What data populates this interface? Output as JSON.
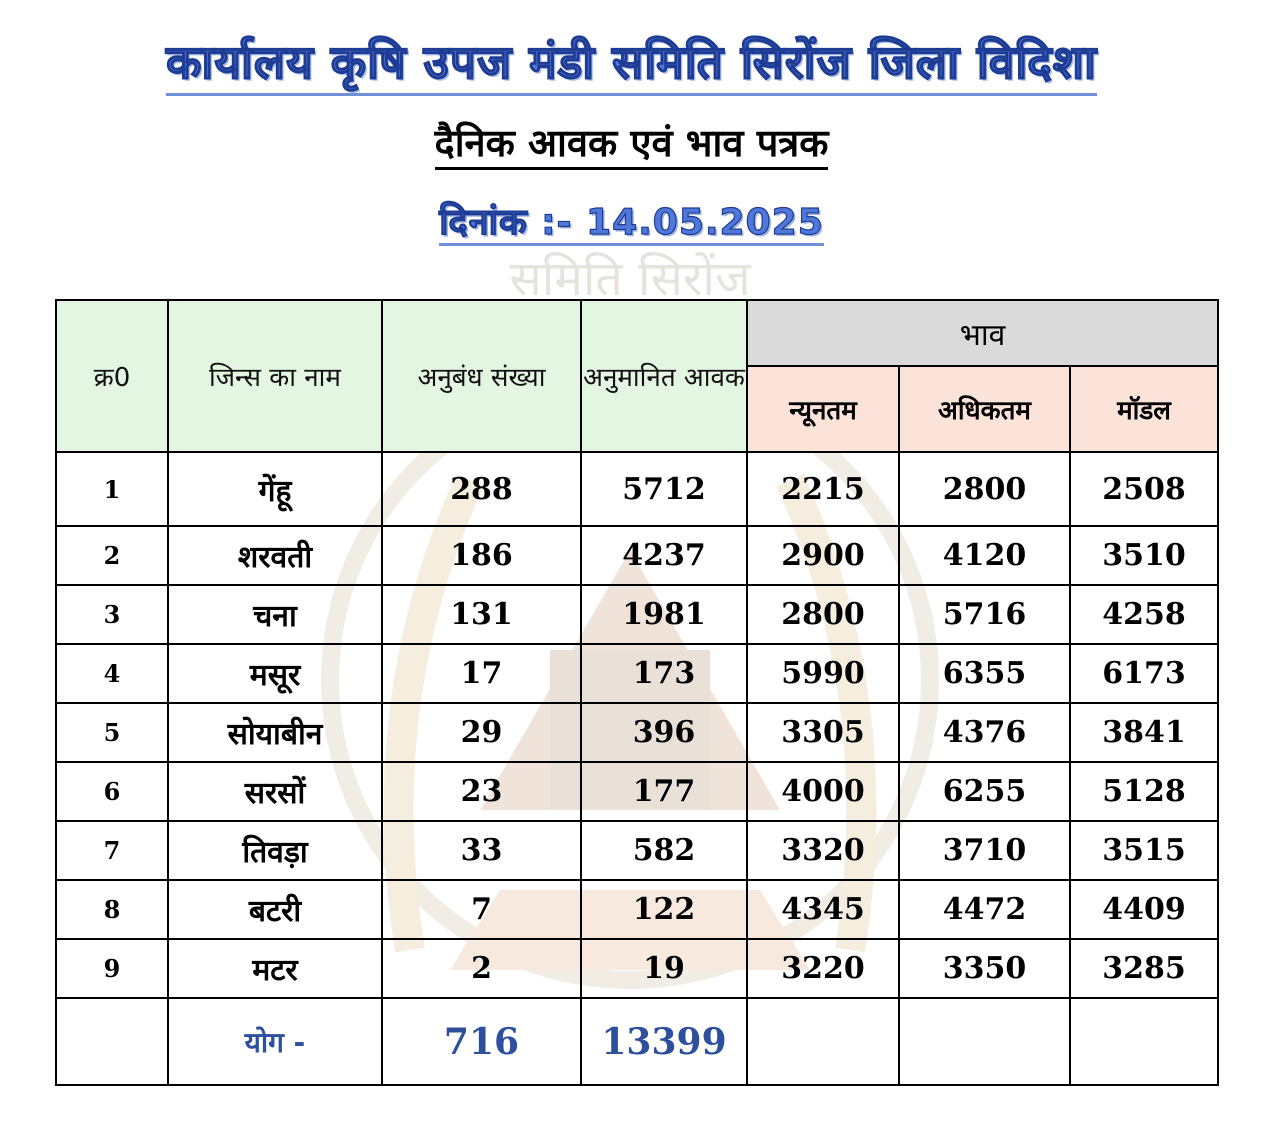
{
  "header": {
    "office_title": "कार्यालय कृषि उपज मंडी समिति सिरोंज जिला विदिशा",
    "report_title": "दैनिक आवक एवं भाव पत्रक",
    "date_label": "दिनांक :- 14.05.2025"
  },
  "watermark": {
    "text": "समिति सिरोंज"
  },
  "table": {
    "headers": {
      "serial": "क्र0",
      "commodity": "जिन्स का नाम",
      "contracts": "अनुबंध संख्या",
      "arrival": "अनुमानित आवक",
      "rate_group": "भाव",
      "min": "न्यूनतम",
      "max": "अधिकतम",
      "modal": "मॉडल"
    },
    "rows": [
      {
        "sr": "1",
        "name": "गेंहू",
        "contracts": "288",
        "arrival": "5712",
        "min": "2215",
        "max": "2800",
        "modal": "2508"
      },
      {
        "sr": "2",
        "name": "शरवती",
        "contracts": "186",
        "arrival": "4237",
        "min": "2900",
        "max": "4120",
        "modal": "3510"
      },
      {
        "sr": "3",
        "name": "चना",
        "contracts": "131",
        "arrival": "1981",
        "min": "2800",
        "max": "5716",
        "modal": "4258"
      },
      {
        "sr": "4",
        "name": "मसूर",
        "contracts": "17",
        "arrival": "173",
        "min": "5990",
        "max": "6355",
        "modal": "6173"
      },
      {
        "sr": "5",
        "name": "सोयाबीन",
        "contracts": "29",
        "arrival": "396",
        "min": "3305",
        "max": "4376",
        "modal": "3841"
      },
      {
        "sr": "6",
        "name": "सरसों",
        "contracts": "23",
        "arrival": "177",
        "min": "4000",
        "max": "6255",
        "modal": "5128"
      },
      {
        "sr": "7",
        "name": "तिवड़ा",
        "contracts": "33",
        "arrival": "582",
        "min": "3320",
        "max": "3710",
        "modal": "3515"
      },
      {
        "sr": "8",
        "name": "बटरी",
        "contracts": "7",
        "arrival": "122",
        "min": "4345",
        "max": "4472",
        "modal": "4409"
      },
      {
        "sr": "9",
        "name": "मटर",
        "contracts": "2",
        "arrival": "19",
        "min": "3220",
        "max": "3350",
        "modal": "3285"
      }
    ],
    "total": {
      "label": "योग -",
      "contracts": "716",
      "arrival": "13399"
    }
  },
  "colors": {
    "title_blue": "#4f78d8",
    "header_green": "#e3f6e2",
    "header_grey": "#dadada",
    "header_peach": "#fbe3da",
    "total_blue": "#2d4f9e"
  }
}
